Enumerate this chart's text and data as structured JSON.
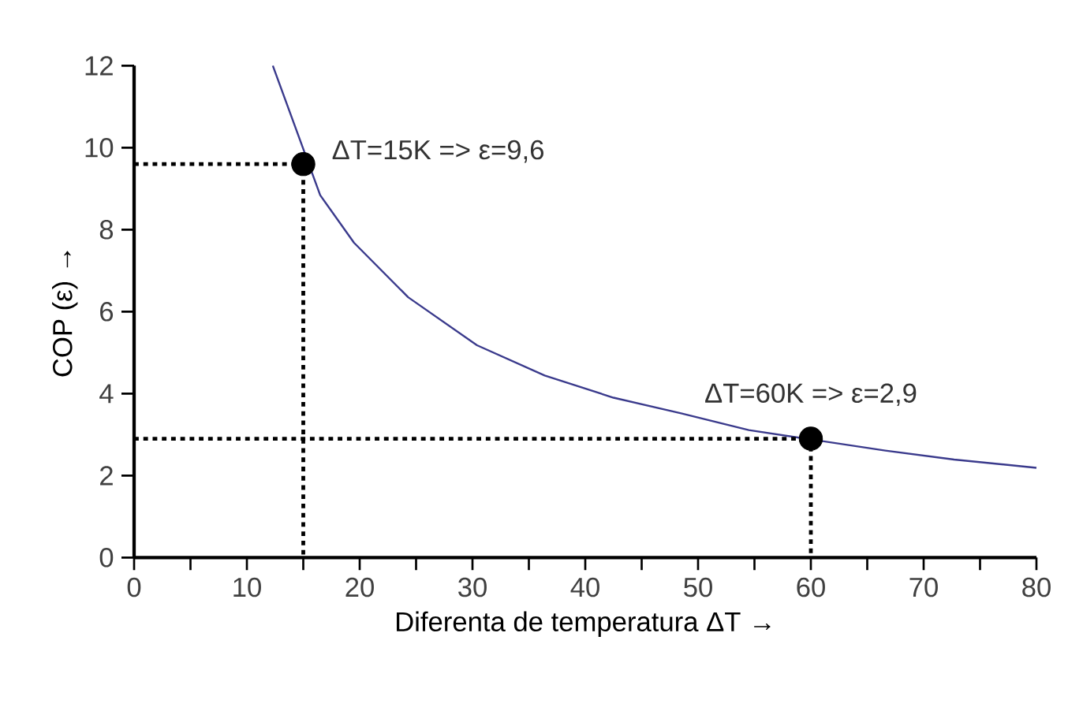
{
  "chart_data": {
    "type": "line",
    "xlabel": "Diferenta de temperatura  ΔT  →",
    "ylabel": "COP (ε)  →",
    "xlim": [
      0,
      80
    ],
    "xticks": [
      0,
      {
        "value": 5,
        "label": null
      },
      10,
      {
        "value": 15,
        "label": null
      },
      20,
      {
        "value": 25,
        "label": null
      },
      30,
      {
        "value": 35,
        "label": null
      },
      40,
      {
        "value": 45,
        "label": null
      },
      50,
      {
        "value": 55,
        "label": null
      },
      60,
      {
        "value": 65,
        "label": null
      },
      70,
      {
        "value": 75,
        "label": null
      },
      80
    ],
    "ylim": [
      0,
      12
    ],
    "yticks": [
      0,
      2,
      4,
      6,
      8,
      10,
      12
    ],
    "grid": false,
    "series": [
      {
        "color": "#3a3a8c",
        "line_style": "solid",
        "marker": "none",
        "x": [
          12.3,
          16.5,
          19.5,
          24.3,
          30.4,
          36.4,
          42.5,
          48.5,
          54.5,
          66.6,
          72.7,
          80
        ],
        "values": [
          12,
          8.84,
          7.68,
          6.35,
          5.18,
          4.44,
          3.9,
          3.52,
          3.11,
          2.61,
          2.39,
          2.19
        ]
      },
      {
        "color": "#000000",
        "line_style": "dotted",
        "marker": "none",
        "x": [
          0,
          15,
          15
        ],
        "values": [
          9.6,
          9.6,
          0
        ]
      },
      {
        "color": "#000000",
        "line_style": "dotted",
        "marker": "none",
        "x": [
          0,
          60,
          60
        ],
        "values": [
          2.9,
          2.9,
          0
        ]
      },
      {
        "type": "scatter",
        "color": "#000000",
        "marker": "circle",
        "x": [
          15,
          60
        ],
        "values": [
          9.6,
          2.9
        ]
      }
    ],
    "annotations": [
      {
        "text": "ΔT=15K => ε=9,6",
        "x": 15,
        "y": 9.6
      },
      {
        "text": "ΔT=60K => ε=2,9",
        "x": 60,
        "y": 2.9
      }
    ]
  }
}
